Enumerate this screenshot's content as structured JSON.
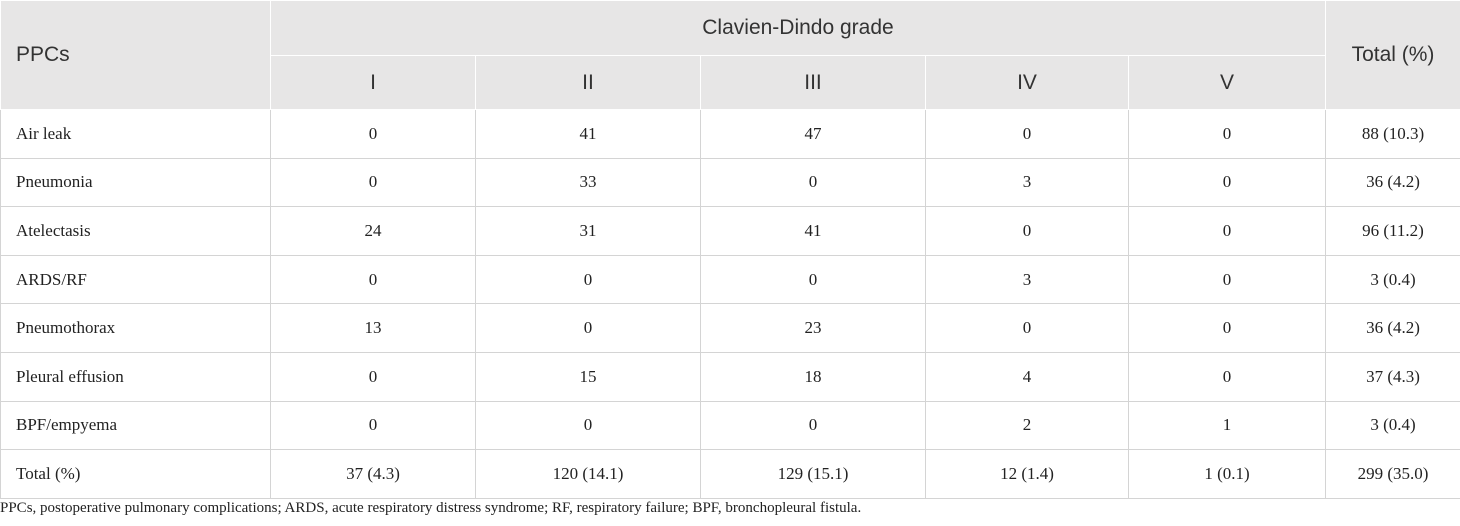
{
  "header": {
    "row_label": "PPCs",
    "group": "Clavien-Dindo grade",
    "grades": [
      "I",
      "II",
      "III",
      "IV",
      "V"
    ],
    "total": "Total (%)"
  },
  "table": {
    "rows": [
      [
        "Air leak",
        "0",
        "41",
        "47",
        "0",
        "0",
        "88 (10.3)"
      ],
      [
        "Pneumonia",
        "0",
        "33",
        "0",
        "3",
        "0",
        "36 (4.2)"
      ],
      [
        "Atelectasis",
        "24",
        "31",
        "41",
        "0",
        "0",
        "96 (11.2)"
      ],
      [
        "ARDS/RF",
        "0",
        "0",
        "0",
        "3",
        "0",
        "3 (0.4)"
      ],
      [
        "Pneumothorax",
        "13",
        "0",
        "23",
        "0",
        "0",
        "36 (4.2)"
      ],
      [
        "Pleural effusion",
        "0",
        "15",
        "18",
        "4",
        "0",
        "37 (4.3)"
      ],
      [
        "BPF/empyema",
        "0",
        "0",
        "0",
        "2",
        "1",
        "3 (0.4)"
      ],
      [
        "Total (%)",
        "37 (4.3)",
        "120 (14.1)",
        "129 (15.1)",
        "12 (1.4)",
        "1 (0.1)",
        "299 (35.0)"
      ]
    ]
  },
  "footnote": "PPCs, postoperative pulmonary complications; ARDS, acute respiratory distress syndrome; RF, respiratory failure; BPF, bronchopleural fistula."
}
